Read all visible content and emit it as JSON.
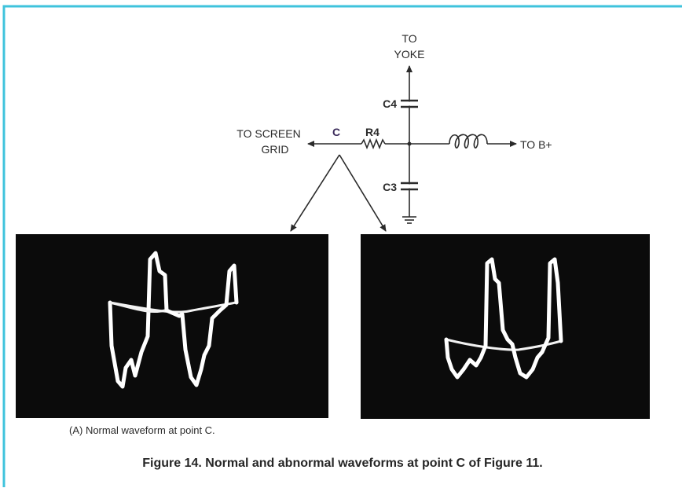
{
  "circuit": {
    "yoke": [
      "TO",
      "YOKE"
    ],
    "capacitor_top": "C4",
    "screen_grid": [
      "TO SCREEN",
      "GRID"
    ],
    "point": "C",
    "resistor": "R4",
    "supply": "TO B+",
    "capacitor_bottom": "C3"
  },
  "scope_caption": "(A) Normal waveform at point C.",
  "caption": "Figure 14. Normal and abnormal waveforms at point C of Figure 11."
}
